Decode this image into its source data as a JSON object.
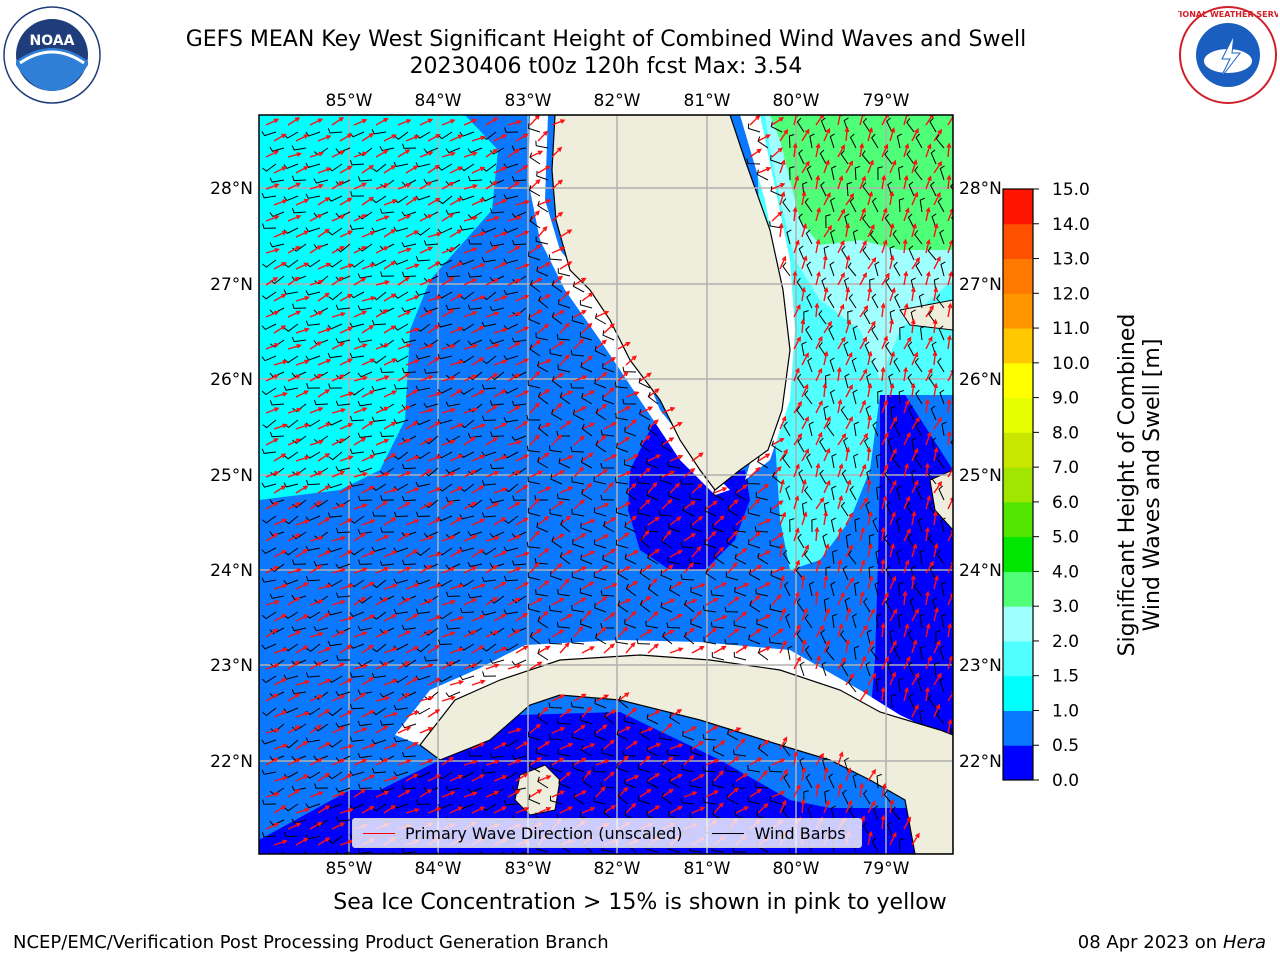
{
  "header": {
    "title_line1": "GEFS MEAN Key West Significant Height of Combined Wind Waves and Swell",
    "title_line2": "20230406 t00z 120h fcst   Max: 3.54"
  },
  "logos": {
    "left": "NOAA",
    "right": "NATIONAL WEATHER SERVICE",
    "left_ring_text": "NATIONAL OCEANIC AND ATMOSPHERIC ADMINISTRATION · U.S. DEPARTMENT OF COMMERCE"
  },
  "map": {
    "lon_labels": [
      "85°W",
      "84°W",
      "83°W",
      "82°W",
      "81°W",
      "80°W",
      "79°W"
    ],
    "lat_labels": [
      "28°N",
      "27°N",
      "26°N",
      "25°N",
      "24°N",
      "23°N",
      "22°N"
    ],
    "lon_range": [
      -86.0,
      -78.3
    ],
    "lat_range": [
      21.0,
      28.75
    ],
    "land_color": "#efeedc",
    "grid_color": "#b0b0b0"
  },
  "legend": {
    "wave_label": "Primary Wave Direction (unscaled)",
    "wave_color": "#ff0000",
    "wind_label": "Wind Barbs",
    "wind_color": "#000000"
  },
  "colorbar": {
    "label_line1": "Significant Height of Combined",
    "label_line2": "Wind Waves and Swell [m]",
    "ticks": [
      "0.0",
      "0.5",
      "1.0",
      "1.5",
      "2.0",
      "3.0",
      "4.0",
      "5.0",
      "6.0",
      "7.0",
      "8.0",
      "9.0",
      "10.0",
      "11.0",
      "12.0",
      "13.0",
      "14.0",
      "15.0"
    ],
    "colors": [
      "#0000ff",
      "#0a78ff",
      "#00ffff",
      "#50ffff",
      "#a0ffff",
      "#50ff78",
      "#00e600",
      "#50e600",
      "#a0e600",
      "#c8e600",
      "#e6ff00",
      "#ffff00",
      "#ffc800",
      "#ff9600",
      "#ff7800",
      "#ff5000",
      "#ff1400"
    ]
  },
  "caption": "Sea Ice Concentration > 15% is shown in pink to yellow",
  "footer": {
    "left": "NCEP/EMC/Verification Post Processing Product Generation Branch",
    "right_date": "08 Apr 2023 on ",
    "right_host": "Hera"
  }
}
